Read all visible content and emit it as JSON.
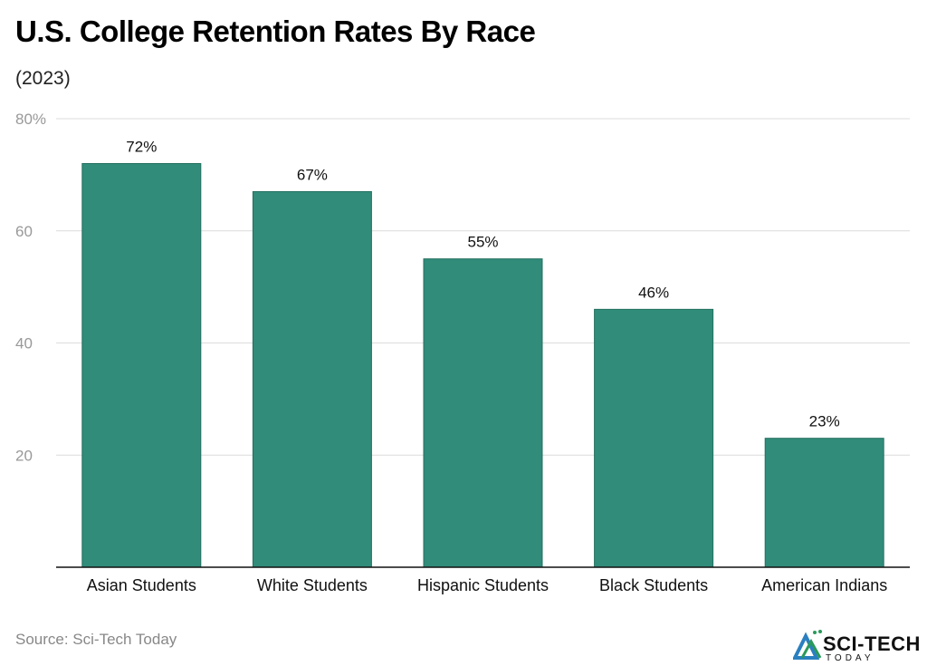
{
  "chart_data": {
    "type": "bar",
    "title": "U.S. College Retention Rates By Race",
    "subtitle": "(2023)",
    "categories": [
      "Asian Students",
      "White Students",
      "Hispanic Students",
      "Black Students",
      "American Indians"
    ],
    "values": [
      72,
      67,
      55,
      46,
      23
    ],
    "data_labels": [
      "72%",
      "67%",
      "55%",
      "46%",
      "23%"
    ],
    "ylim": [
      0,
      80
    ],
    "yticks": [
      20,
      40,
      60,
      80
    ],
    "ytick_labels": [
      "20",
      "40",
      "60",
      "80%"
    ],
    "grid": true,
    "bar_color": "#318c7a",
    "xlabel": "",
    "ylabel": ""
  },
  "source": "Source: Sci-Tech Today",
  "logo": {
    "text": "SCI-TECH",
    "subtext": "TODAY"
  }
}
